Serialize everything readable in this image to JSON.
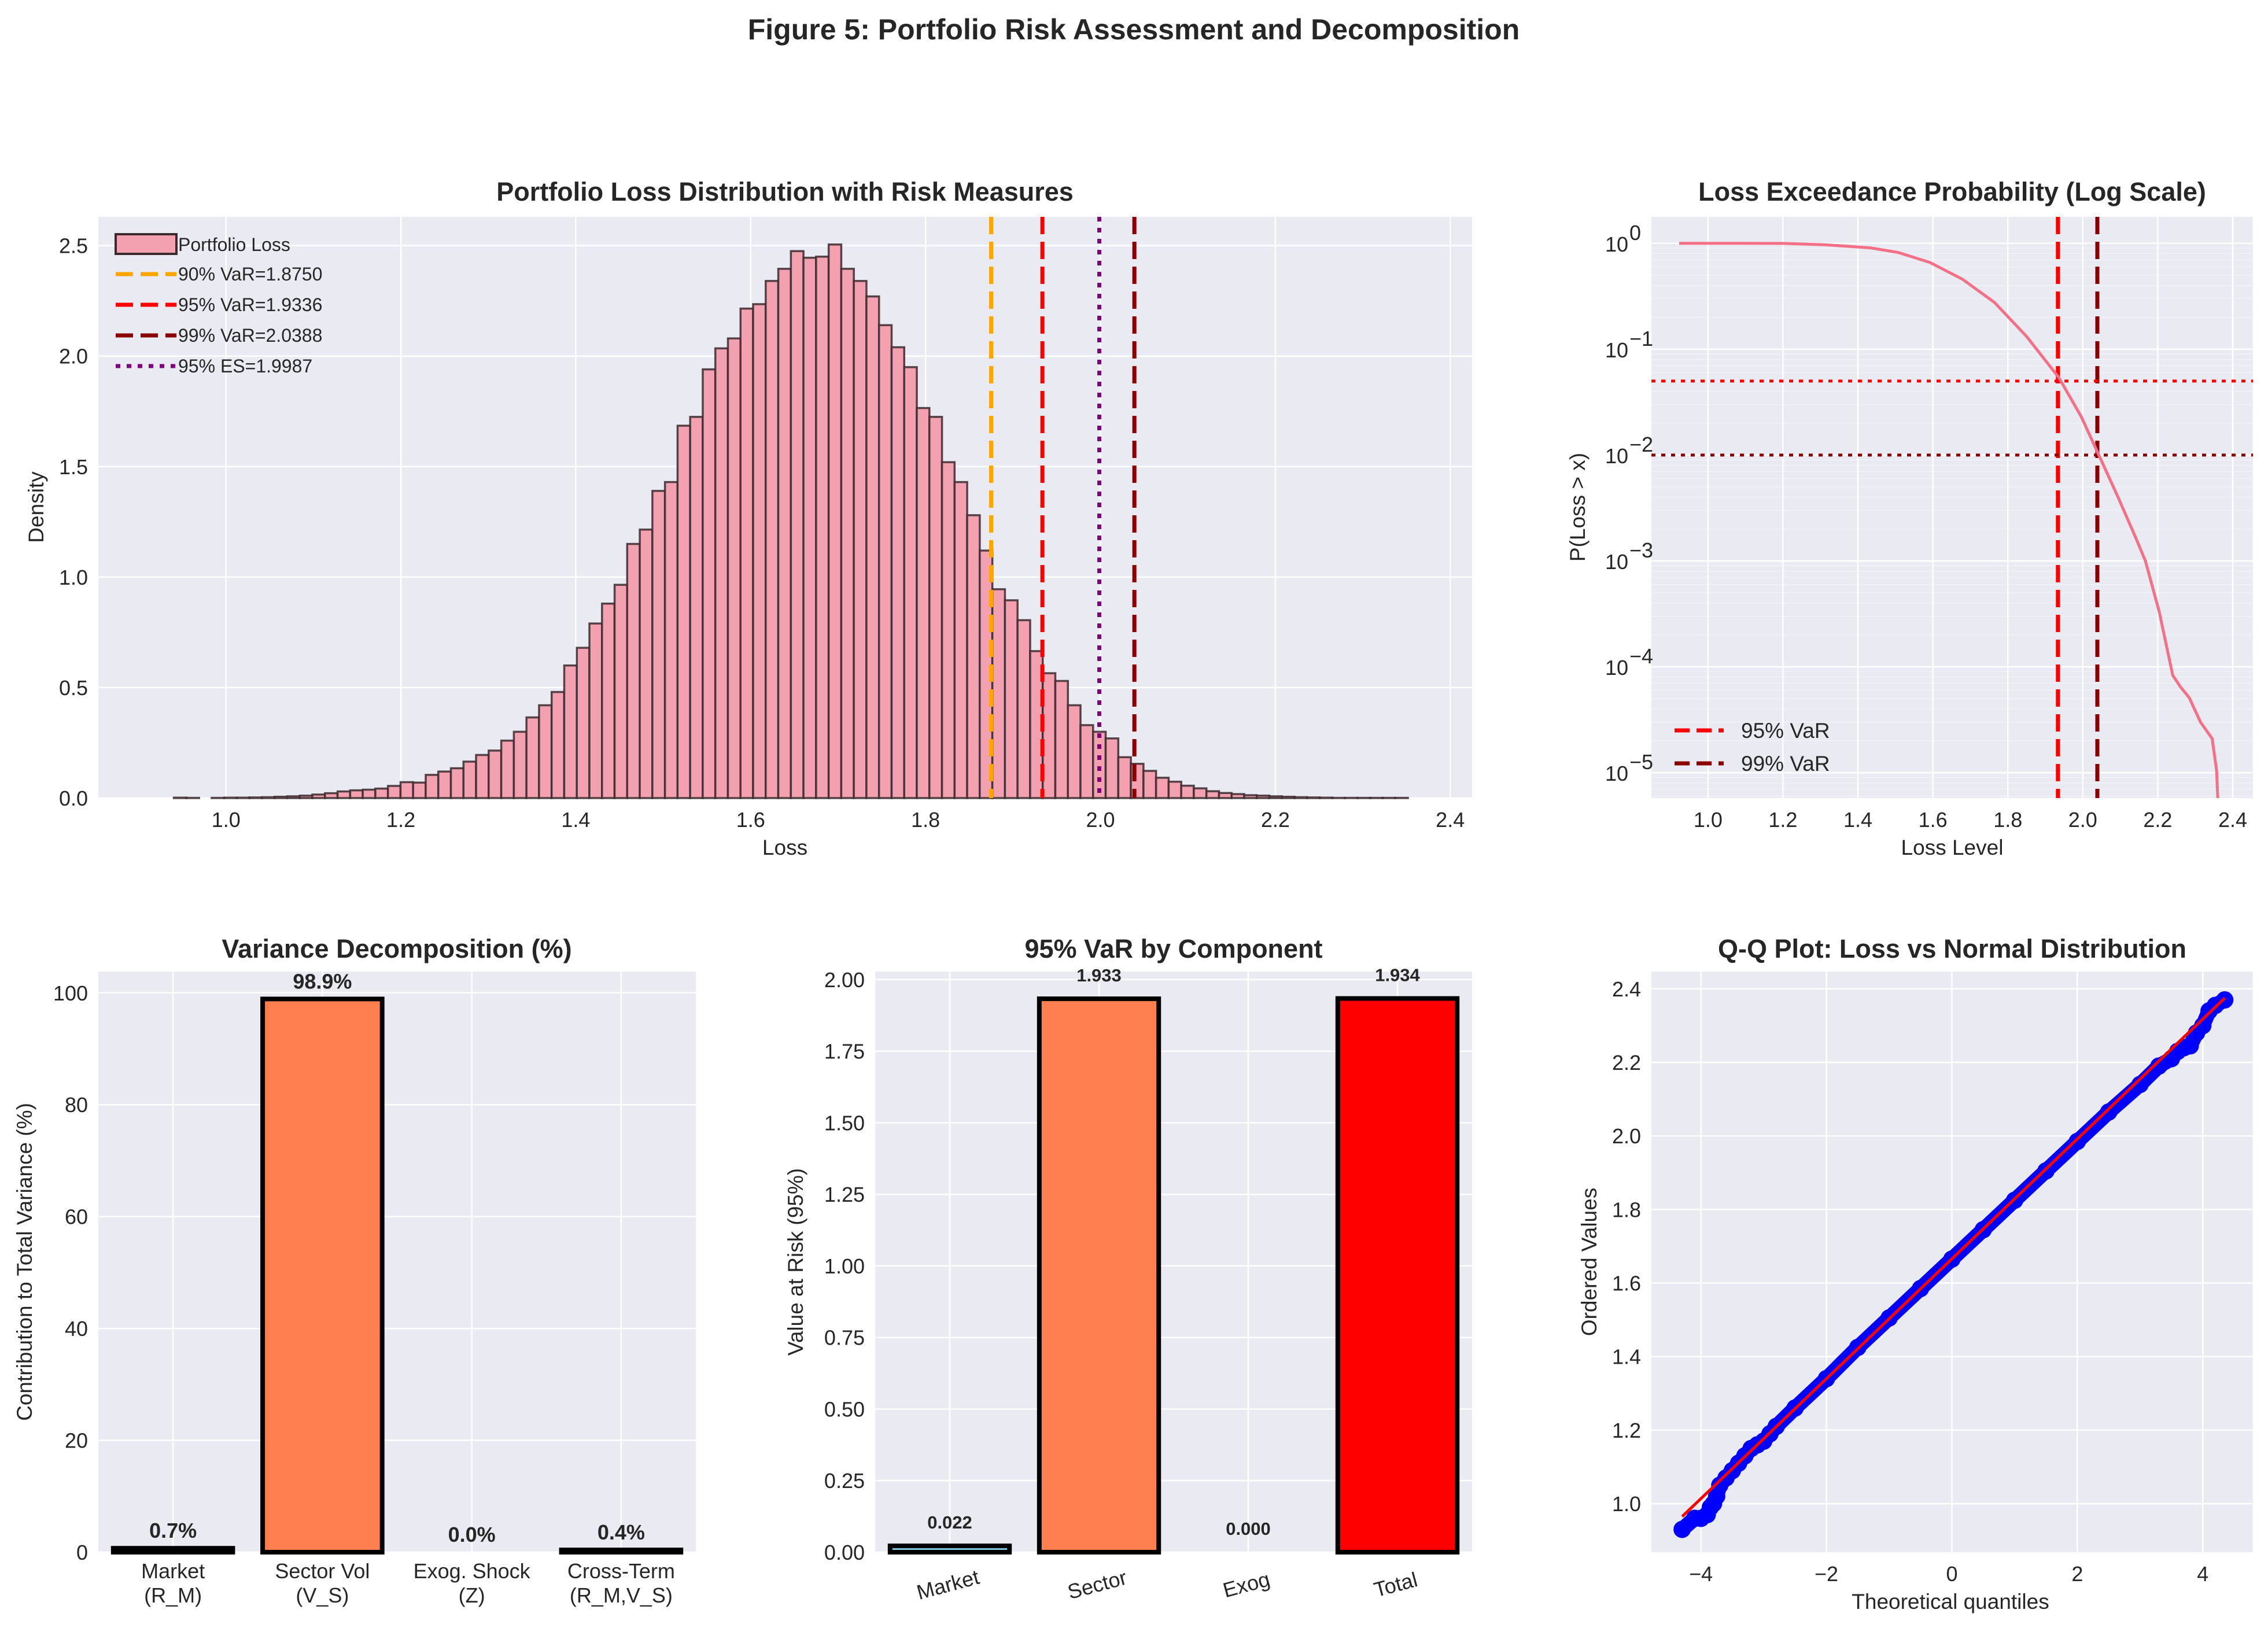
{
  "figure": {
    "title": "Figure 5: Portfolio Risk Assessment and Decomposition"
  },
  "chart_data": [
    {
      "id": "loss_hist",
      "type": "bar",
      "subtype": "histogram",
      "title": "Portfolio Loss Distribution with Risk Measures",
      "xlabel": "Loss",
      "ylabel": "Density",
      "xlim": [
        0.854,
        2.425
      ],
      "ylim": [
        0,
        2.63
      ],
      "xticks": [
        1.0,
        1.2,
        1.4,
        1.6,
        1.8,
        2.0,
        2.2,
        2.4
      ],
      "xtick_labels": [
        "1.0",
        "1.2",
        "1.4",
        "1.6",
        "1.8",
        "2.0",
        "2.2",
        "2.4"
      ],
      "yticks": [
        0.0,
        0.5,
        1.0,
        1.5,
        2.0,
        2.5
      ],
      "ytick_labels": [
        "0.0",
        "0.5",
        "1.0",
        "1.5",
        "2.0",
        "2.5"
      ],
      "grid": true,
      "legend_position": "upper-left",
      "bin_start": 0.926,
      "bin_width": 0.0144,
      "series_name": "Portfolio Loss",
      "fill_color": "#f3a0b0",
      "edge_color": "#3a2a2e",
      "densities": [
        0,
        0.002,
        0.001,
        0,
        0.001,
        0.002,
        0.002,
        0.003,
        0.004,
        0.006,
        0.008,
        0.011,
        0.016,
        0.022,
        0.03,
        0.035,
        0.038,
        0.043,
        0.055,
        0.072,
        0.07,
        0.105,
        0.12,
        0.135,
        0.165,
        0.195,
        0.215,
        0.26,
        0.3,
        0.365,
        0.42,
        0.48,
        0.6,
        0.68,
        0.79,
        0.88,
        0.965,
        1.15,
        1.215,
        1.39,
        1.43,
        1.685,
        1.725,
        1.94,
        2.035,
        2.08,
        2.215,
        2.235,
        2.34,
        2.395,
        2.475,
        2.445,
        2.45,
        2.505,
        2.395,
        2.34,
        2.27,
        2.14,
        2.04,
        1.95,
        1.765,
        1.725,
        1.52,
        1.43,
        1.28,
        1.12,
        0.945,
        0.895,
        0.805,
        0.665,
        0.565,
        0.53,
        0.42,
        0.33,
        0.3,
        0.27,
        0.185,
        0.155,
        0.123,
        0.092,
        0.074,
        0.056,
        0.044,
        0.031,
        0.023,
        0.018,
        0.013,
        0.011,
        0.008,
        0.006,
        0.004,
        0.003,
        0.002,
        0.001,
        0.001,
        0.001,
        0.001,
        0.001,
        0.001,
        0.0
      ],
      "vlines": [
        {
          "label": "90% VaR=1.8750",
          "x": 1.875,
          "color": "#ffa500",
          "style": "dashed"
        },
        {
          "label": "95% VaR=1.9336",
          "x": 1.9336,
          "color": "#ff0000",
          "style": "dashed"
        },
        {
          "label": "99% VaR=2.0388",
          "x": 2.0388,
          "color": "#8b0000",
          "style": "dashed"
        },
        {
          "label": "95% ES=1.9987",
          "x": 1.9987,
          "color": "#800080",
          "style": "dotted"
        }
      ]
    },
    {
      "id": "exceedance",
      "type": "line",
      "title": "Loss Exceedance Probability (Log Scale)",
      "xlabel": "Loss Level",
      "ylabel": "P(Loss > x)",
      "yscale": "log",
      "xlim": [
        0.849,
        2.454
      ],
      "ylim_log10": [
        -5.24,
        0.25
      ],
      "xticks": [
        1.0,
        1.2,
        1.4,
        1.6,
        1.8,
        2.0,
        2.2,
        2.4
      ],
      "xtick_labels": [
        "1.0",
        "1.2",
        "1.4",
        "1.6",
        "1.8",
        "2.0",
        "2.2",
        "2.4"
      ],
      "yticks_exp": [
        0,
        -1,
        -2,
        -3,
        -4,
        -5
      ],
      "ytick_base": "10",
      "grid": true,
      "legend_position": "lower-left",
      "line_color": "#f37086",
      "x": [
        0.923,
        1.1,
        1.2,
        1.312,
        1.434,
        1.507,
        1.592,
        1.678,
        1.764,
        1.85,
        1.936,
        1.996,
        2.045,
        2.094,
        2.143,
        2.167,
        2.204,
        2.24,
        2.26,
        2.284,
        2.314,
        2.345,
        2.357,
        2.36
      ],
      "y": [
        1.0,
        0.9995,
        0.998,
        0.97,
        0.906,
        0.82,
        0.66,
        0.46,
        0.277,
        0.132,
        0.054,
        0.023,
        0.0096,
        0.004,
        0.0016,
        0.001,
        0.00033,
        8.3e-05,
        6.5e-05,
        5.1e-05,
        3e-05,
        2.1e-05,
        1.05e-05,
        5.8e-06
      ],
      "vlines": [
        {
          "label": "95% VaR",
          "x": 1.9336,
          "color": "#ff0000",
          "style": "dashed"
        },
        {
          "label": "99% VaR",
          "x": 2.0388,
          "color": "#8b0000",
          "style": "dashed"
        }
      ],
      "hlines": [
        {
          "y": 0.05,
          "color": "#ff0000",
          "style": "dotted"
        },
        {
          "y": 0.01,
          "color": "#8b0000",
          "style": "dotted"
        }
      ]
    },
    {
      "id": "variance_decomp",
      "type": "bar",
      "title": "Variance Decomposition (%)",
      "xlabel": "",
      "ylabel": "Contribution to Total Variance (%)",
      "ylim": [
        0,
        103.8
      ],
      "yticks": [
        0,
        20,
        40,
        60,
        80,
        100
      ],
      "ytick_labels": [
        "0",
        "20",
        "40",
        "60",
        "80",
        "100"
      ],
      "grid": true,
      "categories": [
        "Market\n(R_M)",
        "Sector Vol\n(V_S)",
        "Exog. Shock\n(Z)",
        "Cross-Term\n(R_M,V_S)"
      ],
      "category_lines": [
        [
          "Market",
          "(R_M)"
        ],
        [
          "Sector Vol",
          "(V_S)"
        ],
        [
          "Exog. Shock",
          "(Z)"
        ],
        [
          "Cross-Term",
          "(R_M,V_S)"
        ]
      ],
      "values": [
        0.7,
        98.9,
        0.0,
        0.4
      ],
      "value_labels": [
        "0.7%",
        "98.9%",
        "0.0%",
        "0.4%"
      ],
      "colors": [
        "#87ceeb",
        "#ff7f50",
        "#90ee90",
        "#dda0dd"
      ]
    },
    {
      "id": "var_by_component",
      "type": "bar",
      "title": "95% VaR by Component",
      "xlabel": "",
      "ylabel": "Value at Risk (95%)",
      "ylim": [
        0,
        2.028
      ],
      "yticks": [
        0.0,
        0.25,
        0.5,
        0.75,
        1.0,
        1.25,
        1.5,
        1.75,
        2.0
      ],
      "ytick_labels": [
        "0.00",
        "0.25",
        "0.50",
        "0.75",
        "1.00",
        "1.25",
        "1.50",
        "1.75",
        "2.00"
      ],
      "grid": true,
      "categories": [
        "Market",
        "Sector",
        "Exog",
        "Total"
      ],
      "values": [
        0.022,
        1.933,
        0.0,
        1.934
      ],
      "value_labels": [
        "0.022",
        "1.933",
        "0.000",
        "1.934"
      ],
      "colors": [
        "#87ceeb",
        "#ff7f50",
        "#90ee90",
        "#ff0000"
      ]
    },
    {
      "id": "qq_plot",
      "type": "scatter",
      "title": "Q-Q Plot: Loss vs Normal Distribution",
      "xlabel": "Theoretical quantiles",
      "ylabel": "Ordered Values",
      "xlim": [
        -4.79,
        4.8
      ],
      "ylim": [
        0.868,
        2.447
      ],
      "xticks": [
        -4,
        -2,
        0,
        2,
        4
      ],
      "xtick_labels": [
        "−4",
        "−2",
        "0",
        "2",
        "4"
      ],
      "yticks": [
        1.0,
        1.2,
        1.4,
        1.6,
        1.8,
        2.0,
        2.2,
        2.4
      ],
      "ytick_labels": [
        "1.0",
        "1.2",
        "1.4",
        "1.6",
        "1.8",
        "2.0",
        "2.2",
        "2.4"
      ],
      "grid": true,
      "point_color": "#0000ff",
      "fit_line_color": "#ff0000",
      "fit_line": {
        "x": [
          -4.3,
          4.35
        ],
        "y": [
          0.965,
          2.375
        ]
      },
      "points_x": [
        -4.3,
        -4.1,
        -4.0,
        -3.9,
        -3.85,
        -3.8,
        -3.75,
        -3.7,
        -3.6,
        -3.5,
        -3.4,
        -3.3,
        -3.2,
        -3.1,
        -3.0,
        -2.9,
        -2.8,
        -2.5,
        -2.0,
        -1.5,
        -1.0,
        -0.5,
        0.0,
        0.5,
        1.0,
        1.5,
        2.0,
        2.5,
        3.0,
        3.3,
        3.5,
        3.6,
        3.7,
        3.8,
        3.9,
        4.0,
        4.1,
        4.2,
        4.35
      ],
      "points_y": [
        0.93,
        0.96,
        0.96,
        0.97,
        0.99,
        1.0,
        1.02,
        1.05,
        1.07,
        1.09,
        1.11,
        1.13,
        1.15,
        1.16,
        1.17,
        1.19,
        1.21,
        1.26,
        1.34,
        1.425,
        1.505,
        1.585,
        1.665,
        1.745,
        1.825,
        1.905,
        1.985,
        2.065,
        2.14,
        2.19,
        2.21,
        2.23,
        2.24,
        2.245,
        2.28,
        2.3,
        2.34,
        2.355,
        2.37
      ]
    }
  ]
}
